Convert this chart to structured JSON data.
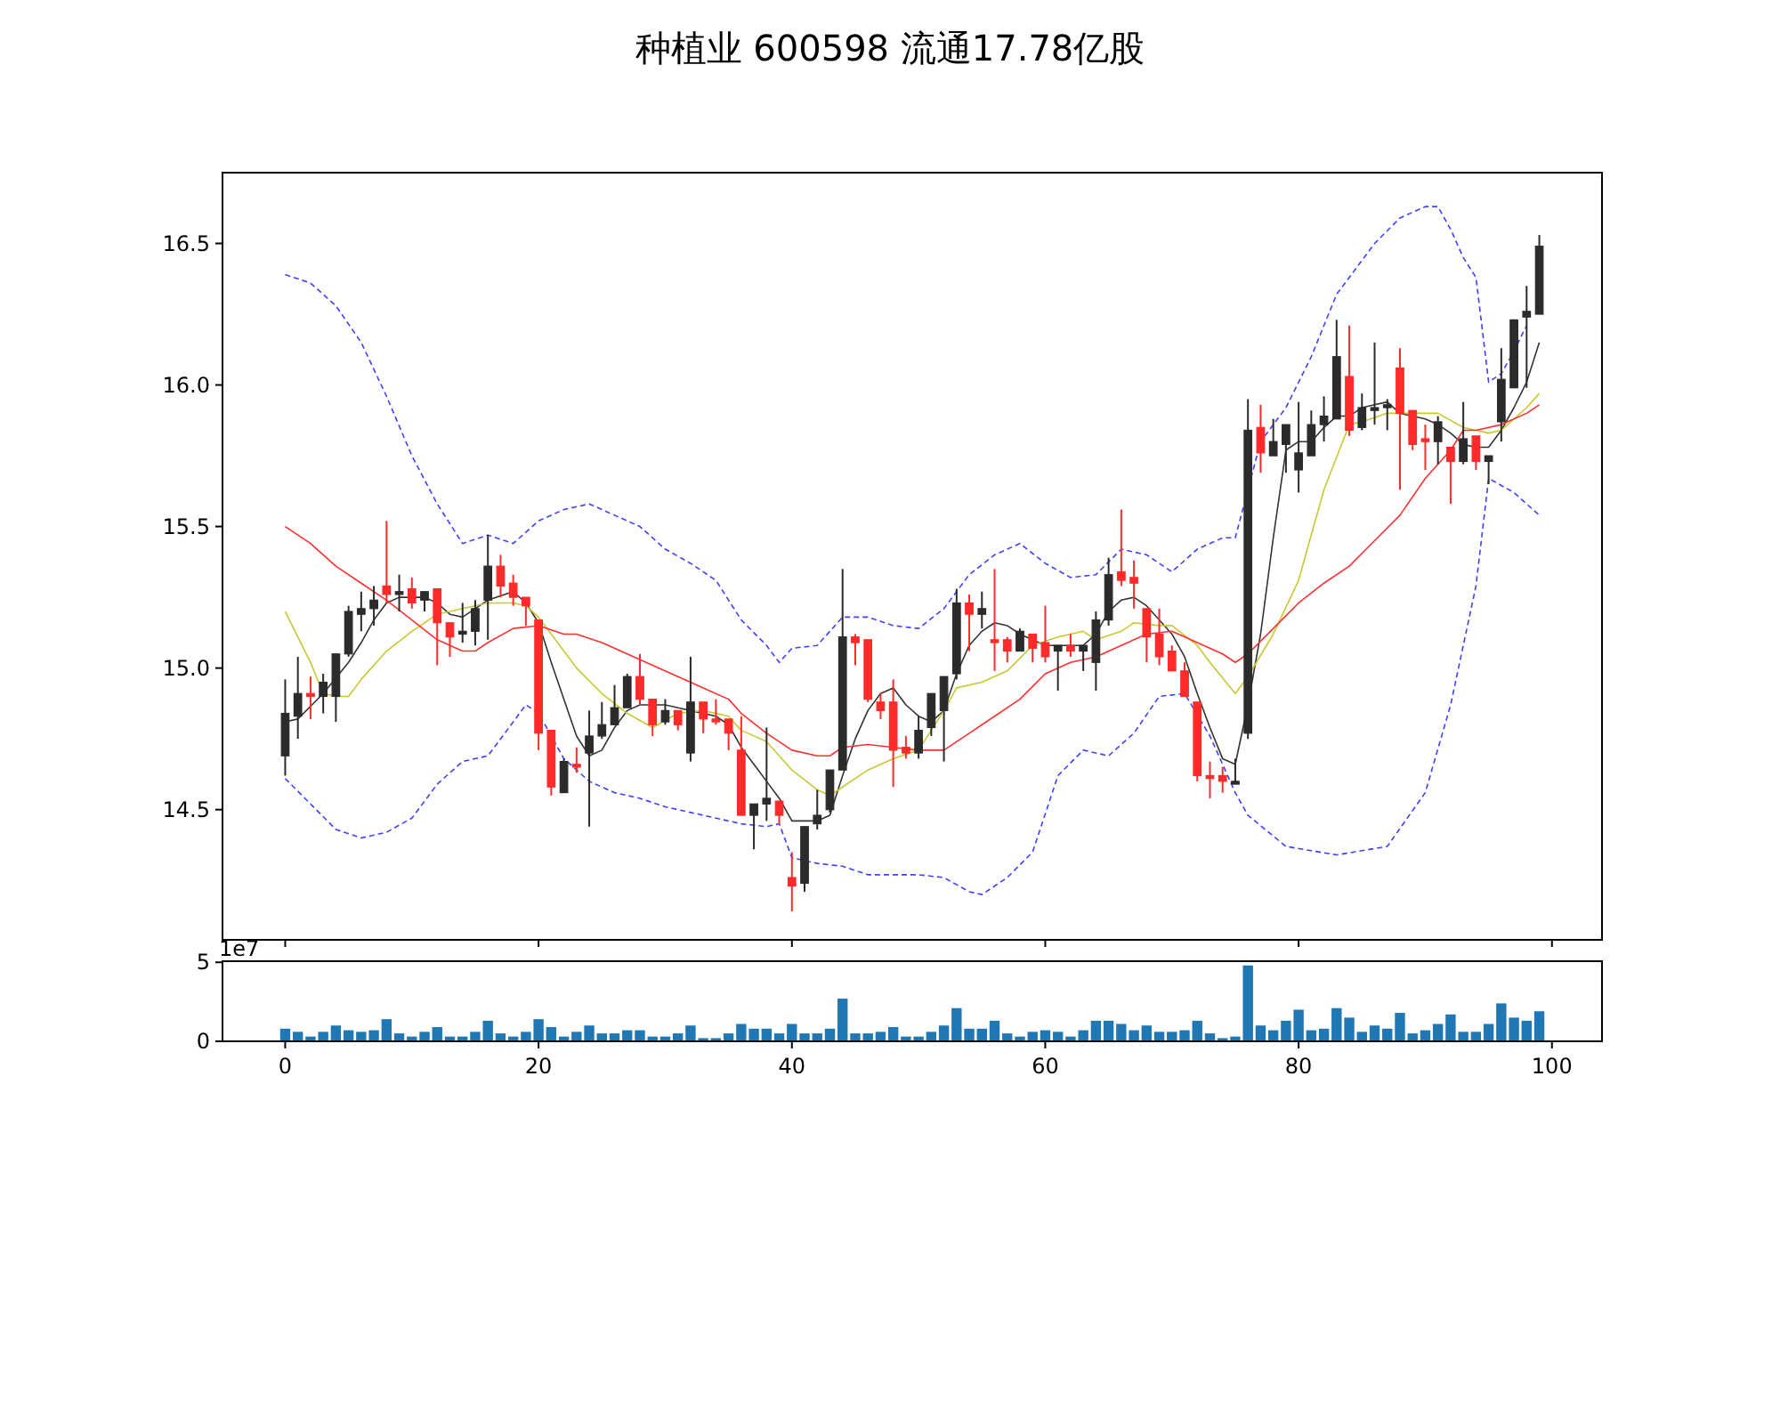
{
  "chart_data": [
    {
      "type": "candlestick",
      "title": "种植业 600598 流通17.78亿股",
      "tick_labels": "y",
      "xlim": [
        -4.95,
        103.95
      ],
      "xticks": [
        0,
        20,
        40,
        60,
        80,
        100
      ],
      "ylim": [
        14.04,
        16.75
      ],
      "yticks": [
        {
          "value": 14.5,
          "label": "14.5"
        },
        {
          "value": 15,
          "label": "15.0"
        },
        {
          "value": 15.5,
          "label": "15.5"
        },
        {
          "value": 16,
          "label": "16.0"
        },
        {
          "value": 16.5,
          "label": "16.5"
        }
      ],
      "x": [
        0,
        1,
        2,
        3,
        4,
        5,
        6,
        7,
        8,
        9,
        10,
        11,
        12,
        13,
        14,
        15,
        16,
        17,
        18,
        19,
        20,
        21,
        22,
        23,
        24,
        25,
        26,
        27,
        28,
        29,
        30,
        31,
        32,
        33,
        34,
        35,
        36,
        37,
        38,
        39,
        40,
        41,
        42,
        43,
        44,
        45,
        46,
        47,
        48,
        49,
        50,
        51,
        52,
        53,
        54,
        55,
        56,
        57,
        58,
        59,
        60,
        61,
        62,
        63,
        64,
        65,
        66,
        67,
        68,
        69,
        70,
        71,
        72,
        73,
        74,
        75,
        76,
        77,
        78,
        79,
        80,
        81,
        82,
        83,
        84,
        85,
        86,
        87,
        88,
        89,
        90,
        91,
        92,
        93,
        94,
        95,
        96,
        97,
        98,
        99
      ],
      "ohlc": [
        [
          14.69,
          14.96,
          14.62,
          14.84
        ],
        [
          14.83,
          15.04,
          14.75,
          14.91
        ],
        [
          14.91,
          14.97,
          14.82,
          14.9
        ],
        [
          14.9,
          14.98,
          14.84,
          14.95
        ],
        [
          14.9,
          15.05,
          14.81,
          15.05
        ],
        [
          15.05,
          15.22,
          15.04,
          15.2
        ],
        [
          15.19,
          15.27,
          15.13,
          15.21
        ],
        [
          15.21,
          15.29,
          15.15,
          15.24
        ],
        [
          15.29,
          15.52,
          15.23,
          15.26
        ],
        [
          15.26,
          15.33,
          15.2,
          15.27
        ],
        [
          15.28,
          15.32,
          15.21,
          15.23
        ],
        [
          15.24,
          15.27,
          15.2,
          15.27
        ],
        [
          15.28,
          15.28,
          15.01,
          15.16
        ],
        [
          15.16,
          15.16,
          15.04,
          15.11
        ],
        [
          15.12,
          15.23,
          15.09,
          15.13
        ],
        [
          15.13,
          15.24,
          15.08,
          15.21
        ],
        [
          15.24,
          15.47,
          15.1,
          15.36
        ],
        [
          15.36,
          15.4,
          15.25,
          15.29
        ],
        [
          15.3,
          15.33,
          15.22,
          15.25
        ],
        [
          15.25,
          15.25,
          15.15,
          15.22
        ],
        [
          15.17,
          15.17,
          14.71,
          14.77
        ],
        [
          14.78,
          14.78,
          14.55,
          14.58
        ],
        [
          14.56,
          14.68,
          14.56,
          14.67
        ],
        [
          14.66,
          14.72,
          14.63,
          14.65
        ],
        [
          14.7,
          14.85,
          14.44,
          14.76
        ],
        [
          14.76,
          14.88,
          14.75,
          14.8
        ],
        [
          14.8,
          14.94,
          14.8,
          14.86
        ],
        [
          14.86,
          14.98,
          14.86,
          14.97
        ],
        [
          14.97,
          15.05,
          14.87,
          14.89
        ],
        [
          14.89,
          14.89,
          14.76,
          14.8
        ],
        [
          14.81,
          14.89,
          14.8,
          14.85
        ],
        [
          14.85,
          14.85,
          14.78,
          14.8
        ],
        [
          14.7,
          15.04,
          14.67,
          14.88
        ],
        [
          14.88,
          14.88,
          14.77,
          14.82
        ],
        [
          14.82,
          14.89,
          14.8,
          14.81
        ],
        [
          14.82,
          14.82,
          14.71,
          14.77
        ],
        [
          14.71,
          14.83,
          14.48,
          14.48
        ],
        [
          14.48,
          14.52,
          14.36,
          14.52
        ],
        [
          14.52,
          14.79,
          14.46,
          14.54
        ],
        [
          14.53,
          14.53,
          14.45,
          14.48
        ],
        [
          14.26,
          14.35,
          14.14,
          14.23
        ],
        [
          14.24,
          14.44,
          14.21,
          14.44
        ],
        [
          14.45,
          14.57,
          14.43,
          14.48
        ],
        [
          14.5,
          14.64,
          14.49,
          14.64
        ],
        [
          14.64,
          15.35,
          14.64,
          15.11
        ],
        [
          15.11,
          15.12,
          15.01,
          15.09
        ],
        [
          15.1,
          15.1,
          14.88,
          14.89
        ],
        [
          14.88,
          14.91,
          14.82,
          14.85
        ],
        [
          14.88,
          14.96,
          14.58,
          14.71
        ],
        [
          14.72,
          14.76,
          14.68,
          14.7
        ],
        [
          14.7,
          14.83,
          14.68,
          14.78
        ],
        [
          14.79,
          14.91,
          14.76,
          14.91
        ],
        [
          14.85,
          14.97,
          14.67,
          14.97
        ],
        [
          14.98,
          15.28,
          14.96,
          15.23
        ],
        [
          15.23,
          15.26,
          15.06,
          15.19
        ],
        [
          15.19,
          15.27,
          15.14,
          15.21
        ],
        [
          15.1,
          15.35,
          14.99,
          15.09
        ],
        [
          15.1,
          15.11,
          15.02,
          15.06
        ],
        [
          15.06,
          15.14,
          15.06,
          15.13
        ],
        [
          15.12,
          15.12,
          15.02,
          15.07
        ],
        [
          15.09,
          15.22,
          15.02,
          15.04
        ],
        [
          15.06,
          15.08,
          14.92,
          15.08
        ],
        [
          15.08,
          15.12,
          15.04,
          15.06
        ],
        [
          15.06,
          15.08,
          14.99,
          15.08
        ],
        [
          15.02,
          15.2,
          14.92,
          15.17
        ],
        [
          15.17,
          15.39,
          15.15,
          15.33
        ],
        [
          15.34,
          15.56,
          15.29,
          15.31
        ],
        [
          15.32,
          15.38,
          15.21,
          15.3
        ],
        [
          15.21,
          15.21,
          15.02,
          15.11
        ],
        [
          15.12,
          15.21,
          15.01,
          15.04
        ],
        [
          15.06,
          15.08,
          14.99,
          14.99
        ],
        [
          14.99,
          15.02,
          14.9,
          14.9
        ],
        [
          14.88,
          14.88,
          14.6,
          14.62
        ],
        [
          14.62,
          14.67,
          14.54,
          14.61
        ],
        [
          14.62,
          14.65,
          14.56,
          14.6
        ],
        [
          14.59,
          14.68,
          14.59,
          14.6
        ],
        [
          14.77,
          15.95,
          14.75,
          15.84
        ],
        [
          15.85,
          15.93,
          15.69,
          15.76
        ],
        [
          15.75,
          15.88,
          15.75,
          15.8
        ],
        [
          15.79,
          15.86,
          15.69,
          15.86
        ],
        [
          15.7,
          15.94,
          15.62,
          15.76
        ],
        [
          15.75,
          15.91,
          15.75,
          15.86
        ],
        [
          15.86,
          15.96,
          15.8,
          15.89
        ],
        [
          15.88,
          16.23,
          15.88,
          16.1
        ],
        [
          16.03,
          16.21,
          15.82,
          15.84
        ],
        [
          15.85,
          15.97,
          15.84,
          15.92
        ],
        [
          15.91,
          16.15,
          15.86,
          15.92
        ],
        [
          15.92,
          15.95,
          15.84,
          15.93
        ],
        [
          16.06,
          16.13,
          15.63,
          15.9
        ],
        [
          15.91,
          15.91,
          15.77,
          15.79
        ],
        [
          15.81,
          15.86,
          15.7,
          15.8
        ],
        [
          15.8,
          15.89,
          15.72,
          15.87
        ],
        [
          15.78,
          15.78,
          15.58,
          15.73
        ],
        [
          15.73,
          15.94,
          15.72,
          15.81
        ],
        [
          15.82,
          15.82,
          15.7,
          15.73
        ],
        [
          15.73,
          15.75,
          15.65,
          15.75
        ],
        [
          15.87,
          16.13,
          15.8,
          16.02
        ],
        [
          15.99,
          16.23,
          15.99,
          16.23
        ],
        [
          16.24,
          16.35,
          15.99,
          16.26
        ],
        [
          16.25,
          16.53,
          16.25,
          16.49
        ]
      ],
      "colors": [
        "#2b2b2b",
        "#2b2b2b",
        "#ff2a2a",
        "#2b2b2b",
        "#2b2b2b",
        "#2b2b2b",
        "#2b2b2b",
        "#2b2b2b",
        "#ff2a2a",
        "#2b2b2b",
        "#ff2a2a",
        "#2b2b2b",
        "#ff2a2a",
        "#ff2a2a",
        "#2b2b2b",
        "#2b2b2b",
        "#2b2b2b",
        "#ff2a2a",
        "#ff2a2a",
        "#ff2a2a",
        "#ff2a2a",
        "#ff2a2a",
        "#2b2b2b",
        "#ff2a2a",
        "#2b2b2b",
        "#2b2b2b",
        "#2b2b2b",
        "#2b2b2b",
        "#ff2a2a",
        "#ff2a2a",
        "#2b2b2b",
        "#ff2a2a",
        "#2b2b2b",
        "#ff2a2a",
        "#ff2a2a",
        "#ff2a2a",
        "#ff2a2a",
        "#2b2b2b",
        "#2b2b2b",
        "#ff2a2a",
        "#ff2a2a",
        "#2b2b2b",
        "#2b2b2b",
        "#2b2b2b",
        "#2b2b2b",
        "#ff2a2a",
        "#ff2a2a",
        "#ff2a2a",
        "#ff2a2a",
        "#ff2a2a",
        "#2b2b2b",
        "#2b2b2b",
        "#2b2b2b",
        "#2b2b2b",
        "#ff2a2a",
        "#2b2b2b",
        "#ff2a2a",
        "#ff2a2a",
        "#2b2b2b",
        "#ff2a2a",
        "#ff2a2a",
        "#2b2b2b",
        "#ff2a2a",
        "#2b2b2b",
        "#2b2b2b",
        "#2b2b2b",
        "#ff2a2a",
        "#ff2a2a",
        "#ff2a2a",
        "#ff2a2a",
        "#ff2a2a",
        "#ff2a2a",
        "#ff2a2a",
        "#ff2a2a",
        "#ff2a2a",
        "#2b2b2b",
        "#2b2b2b",
        "#ff2a2a",
        "#2b2b2b",
        "#2b2b2b",
        "#2b2b2b",
        "#2b2b2b",
        "#2b2b2b",
        "#2b2b2b",
        "#ff2a2a",
        "#2b2b2b",
        "#2b2b2b",
        "#2b2b2b",
        "#ff2a2a",
        "#ff2a2a",
        "#ff2a2a",
        "#2b2b2b",
        "#ff2a2a",
        "#2b2b2b",
        "#ff2a2a",
        "#2b2b2b",
        "#2b2b2b",
        "#2b2b2b",
        "#2b2b2b",
        "#2b2b2b"
      ],
      "series": [
        {
          "type": "line",
          "color": "#333333",
          "line_style": "solid",
          "x": [
            0,
            1,
            3,
            5,
            6,
            7,
            8,
            9,
            11,
            12,
            13,
            14,
            15,
            16,
            18,
            19,
            20,
            21,
            22,
            23,
            24,
            25,
            26,
            27,
            28,
            30,
            32,
            34,
            35,
            36,
            37,
            38,
            39,
            40,
            42,
            43,
            44,
            45,
            46,
            47,
            48,
            49,
            50,
            51,
            52,
            53,
            54,
            55,
            56,
            57,
            58,
            60,
            63,
            64,
            65,
            66,
            67,
            68,
            69,
            70,
            71,
            72,
            73,
            74,
            75,
            76,
            77,
            78,
            79,
            80,
            81,
            82,
            83,
            84,
            85,
            86,
            87,
            88,
            89,
            90,
            91,
            92,
            93,
            94,
            95,
            96,
            97,
            98,
            99
          ],
          "values": [
            14.81,
            14.82,
            14.91,
            15.02,
            15.09,
            15.17,
            15.23,
            15.25,
            15.25,
            15.23,
            15.19,
            15.18,
            15.21,
            15.24,
            15.27,
            15.23,
            15.16,
            15.02,
            14.89,
            14.76,
            14.69,
            14.71,
            14.79,
            14.85,
            14.87,
            14.87,
            14.85,
            14.83,
            14.8,
            14.72,
            14.66,
            14.6,
            14.54,
            14.46,
            14.46,
            14.48,
            14.62,
            14.75,
            14.85,
            14.91,
            14.93,
            14.87,
            14.83,
            14.81,
            14.85,
            14.98,
            15.08,
            15.13,
            15.16,
            15.15,
            15.12,
            15.08,
            15.08,
            15.12,
            15.2,
            15.24,
            15.25,
            15.22,
            15.17,
            15.12,
            15.04,
            14.91,
            14.79,
            14.68,
            14.66,
            14.87,
            15.12,
            15.46,
            15.77,
            15.8,
            15.8,
            15.85,
            15.89,
            15.89,
            15.92,
            15.93,
            15.94,
            15.9,
            15.89,
            15.88,
            15.86,
            15.83,
            15.79,
            15.78,
            15.78,
            15.84,
            15.92,
            16.01,
            16.15
          ]
        },
        {
          "type": "line",
          "color": "#c8c832",
          "line_style": "solid",
          "x": [
            0,
            2,
            3,
            4,
            5,
            6,
            8,
            10,
            12,
            14,
            16,
            18,
            19,
            20,
            22,
            23,
            25,
            27,
            29,
            31,
            33,
            35,
            36,
            38,
            40,
            42,
            43,
            44,
            46,
            48,
            50,
            51,
            52,
            53,
            55,
            57,
            59,
            61,
            63,
            64,
            66,
            67,
            69,
            70,
            72,
            73,
            75,
            76,
            78,
            80,
            82,
            84,
            85,
            87,
            89,
            91,
            93,
            94,
            95,
            96,
            97,
            98,
            99
          ],
          "values": [
            15.2,
            15.02,
            14.91,
            14.9,
            14.9,
            14.96,
            15.06,
            15.13,
            15.19,
            15.21,
            15.23,
            15.23,
            15.22,
            15.18,
            15.06,
            15.0,
            14.91,
            14.84,
            14.79,
            14.84,
            14.85,
            14.83,
            14.78,
            14.74,
            14.64,
            14.57,
            14.55,
            14.58,
            14.64,
            14.68,
            14.71,
            14.78,
            14.85,
            14.93,
            14.95,
            14.99,
            15.08,
            15.11,
            15.13,
            15.1,
            15.13,
            15.16,
            15.15,
            15.15,
            15.08,
            15.02,
            14.91,
            14.97,
            15.12,
            15.31,
            15.63,
            15.86,
            15.87,
            15.9,
            15.9,
            15.9,
            15.85,
            15.84,
            15.83,
            15.84,
            15.88,
            15.92,
            15.97
          ]
        },
        {
          "type": "line",
          "color": "#ff3030",
          "line_style": "solid",
          "x": [
            0,
            2,
            4,
            6,
            8,
            10,
            12,
            14,
            15,
            16,
            18,
            20,
            22,
            23,
            25,
            27,
            29,
            31,
            33,
            35,
            36,
            38,
            40,
            42,
            43,
            44,
            46,
            48,
            50,
            52,
            54,
            56,
            58,
            60,
            62,
            64,
            66,
            68,
            70,
            72,
            74,
            75,
            76,
            78,
            80,
            82,
            84,
            86,
            88,
            90,
            92,
            93,
            94,
            96,
            98,
            99
          ],
          "values": [
            15.5,
            15.44,
            15.36,
            15.3,
            15.24,
            15.17,
            15.1,
            15.06,
            15.06,
            15.09,
            15.14,
            15.15,
            15.12,
            15.12,
            15.09,
            15.05,
            15.01,
            14.97,
            14.93,
            14.89,
            14.84,
            14.77,
            14.71,
            14.69,
            14.69,
            14.72,
            14.73,
            14.72,
            14.71,
            14.71,
            14.77,
            14.83,
            14.89,
            14.98,
            15.02,
            15.04,
            15.08,
            15.12,
            15.13,
            15.09,
            15.05,
            15.02,
            15.05,
            15.14,
            15.23,
            15.3,
            15.36,
            15.45,
            15.54,
            15.67,
            15.77,
            15.84,
            15.84,
            15.86,
            15.9,
            15.93
          ]
        },
        {
          "type": "line",
          "color": "#4040ff",
          "line_style": "dashed",
          "x": [
            0,
            2,
            4,
            6,
            8,
            10,
            12,
            14,
            16,
            18,
            20,
            22,
            24,
            26,
            28,
            30,
            32,
            34,
            36,
            38,
            39,
            40,
            42,
            44,
            46,
            48,
            50,
            52,
            54,
            56,
            58,
            60,
            62,
            64,
            66,
            68,
            70,
            72,
            74,
            75,
            77,
            79,
            81,
            83,
            86,
            88,
            90,
            91,
            92,
            93,
            94,
            95,
            96,
            97,
            98
          ],
          "values": [
            16.39,
            16.36,
            16.28,
            16.15,
            15.96,
            15.75,
            15.58,
            15.44,
            15.47,
            15.44,
            15.52,
            15.56,
            15.58,
            15.54,
            15.5,
            15.42,
            15.37,
            15.31,
            15.17,
            15.08,
            15.02,
            15.07,
            15.08,
            15.18,
            15.18,
            15.15,
            15.14,
            15.21,
            15.33,
            15.4,
            15.44,
            15.37,
            15.32,
            15.33,
            15.42,
            15.4,
            15.34,
            15.42,
            15.46,
            15.46,
            15.8,
            15.92,
            16.1,
            16.32,
            16.5,
            16.59,
            16.63,
            16.63,
            16.55,
            16.45,
            16.38,
            16.01,
            16.04,
            16.12,
            16.21
          ]
        },
        {
          "type": "line",
          "color": "#4040ff",
          "line_style": "dashed",
          "x": [
            0,
            2,
            4,
            6,
            8,
            10,
            12,
            14,
            16,
            18,
            19,
            20,
            22,
            24,
            26,
            28,
            30,
            32,
            34,
            36,
            38,
            39,
            40,
            42,
            44,
            46,
            48,
            50,
            52,
            54,
            55,
            57,
            59,
            61,
            63,
            65,
            67,
            69,
            71,
            73,
            75,
            76,
            79,
            83,
            87,
            90,
            92,
            94,
            95,
            97,
            99
          ],
          "values": [
            14.61,
            14.52,
            14.43,
            14.4,
            14.42,
            14.47,
            14.59,
            14.67,
            14.69,
            14.81,
            14.87,
            14.84,
            14.68,
            14.6,
            14.56,
            14.54,
            14.51,
            14.49,
            14.47,
            14.45,
            14.44,
            14.45,
            14.33,
            14.31,
            14.3,
            14.27,
            14.27,
            14.27,
            14.26,
            14.21,
            14.2,
            14.26,
            14.35,
            14.62,
            14.71,
            14.69,
            14.77,
            14.9,
            14.91,
            14.76,
            14.56,
            14.48,
            14.37,
            14.34,
            14.37,
            14.56,
            14.87,
            15.29,
            15.67,
            15.62,
            15.54
          ]
        }
      ]
    },
    {
      "type": "bar",
      "color": "#1f77b4",
      "xlim": [
        -4.95,
        103.95
      ],
      "xticks": [
        0,
        20,
        40,
        60,
        80,
        100
      ],
      "ylim": [
        0,
        5.07
      ],
      "yticks": [
        0,
        5
      ],
      "annotations": [
        "1e7"
      ],
      "x": [
        0,
        1,
        2,
        3,
        4,
        5,
        6,
        7,
        8,
        9,
        10,
        11,
        12,
        13,
        14,
        15,
        16,
        17,
        18,
        19,
        20,
        21,
        22,
        23,
        24,
        25,
        26,
        27,
        28,
        29,
        30,
        31,
        32,
        33,
        34,
        35,
        36,
        37,
        38,
        39,
        40,
        41,
        42,
        43,
        44,
        45,
        46,
        47,
        48,
        49,
        50,
        51,
        52,
        53,
        54,
        55,
        56,
        57,
        58,
        59,
        60,
        61,
        62,
        63,
        64,
        65,
        66,
        67,
        68,
        69,
        70,
        71,
        72,
        73,
        74,
        75,
        76,
        77,
        78,
        79,
        80,
        81,
        82,
        83,
        84,
        85,
        86,
        87,
        88,
        89,
        90,
        91,
        92,
        93,
        94,
        95,
        96,
        97,
        98,
        99
      ],
      "values": [
        0.8,
        0.6,
        0.3,
        0.6,
        1.0,
        0.7,
        0.6,
        0.7,
        1.4,
        0.5,
        0.3,
        0.6,
        0.9,
        0.3,
        0.3,
        0.6,
        1.3,
        0.5,
        0.3,
        0.6,
        1.4,
        0.9,
        0.3,
        0.6,
        1.0,
        0.5,
        0.5,
        0.7,
        0.7,
        0.3,
        0.3,
        0.5,
        1.0,
        0.2,
        0.2,
        0.5,
        1.1,
        0.8,
        0.8,
        0.5,
        1.1,
        0.5,
        0.5,
        0.8,
        2.7,
        0.5,
        0.5,
        0.6,
        0.9,
        0.3,
        0.3,
        0.6,
        1.0,
        2.1,
        0.8,
        0.8,
        1.3,
        0.5,
        0.3,
        0.6,
        0.7,
        0.6,
        0.3,
        0.7,
        1.3,
        1.3,
        1.1,
        0.7,
        1.0,
        0.6,
        0.6,
        0.7,
        1.3,
        0.5,
        0.2,
        0.3,
        4.8,
        1.0,
        0.7,
        1.3,
        2.0,
        0.7,
        0.8,
        2.1,
        1.5,
        0.6,
        1.0,
        0.8,
        1.8,
        0.5,
        0.7,
        1.1,
        1.7,
        0.6,
        0.6,
        1.1,
        2.4,
        1.5,
        1.3,
        1.9
      ]
    }
  ]
}
